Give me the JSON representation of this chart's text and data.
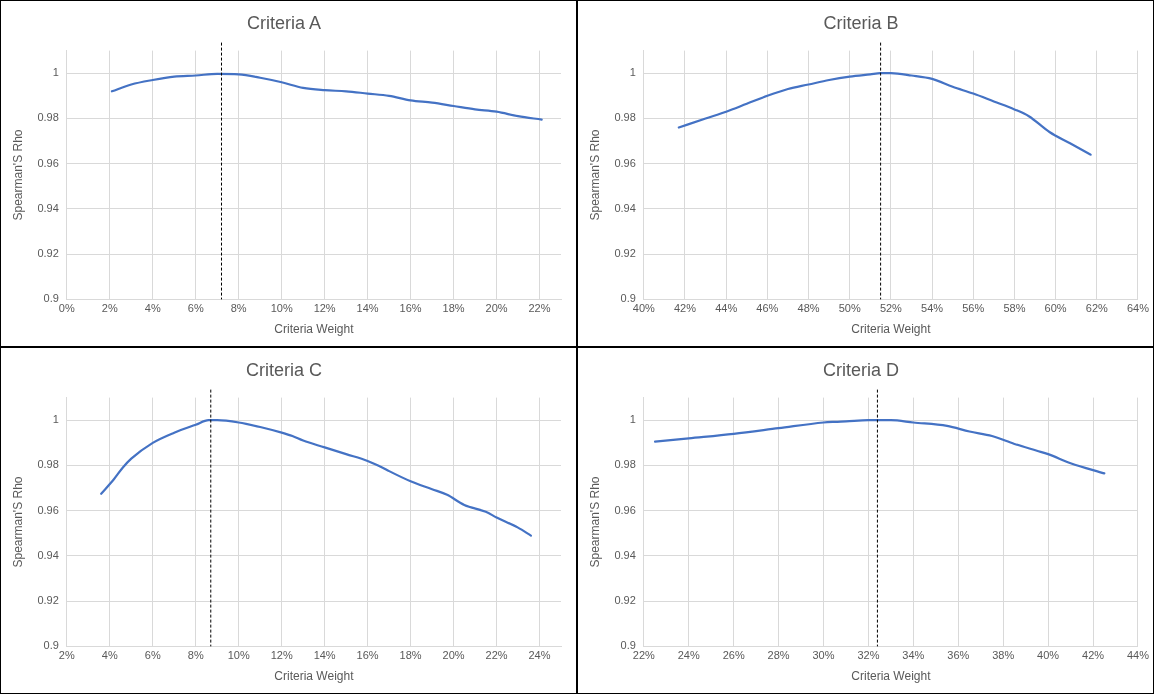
{
  "chart_data": [
    {
      "type": "line",
      "title": "Criteria A",
      "xlabel": "Criteria Weight",
      "ylabel": "Spearman'S Rho",
      "grid": true,
      "marker": "none",
      "line_style": "solid",
      "xlim": [
        0,
        23
      ],
      "xticks": [
        {
          "value": 0,
          "label": "0%"
        },
        {
          "value": 2,
          "label": "2%"
        },
        {
          "value": 4,
          "label": "4%"
        },
        {
          "value": 6,
          "label": "6%"
        },
        {
          "value": 8,
          "label": "8%"
        },
        {
          "value": 10,
          "label": "10%"
        },
        {
          "value": 12,
          "label": "12%"
        },
        {
          "value": 14,
          "label": "14%"
        },
        {
          "value": 16,
          "label": "16%"
        },
        {
          "value": 18,
          "label": "18%"
        },
        {
          "value": 20,
          "label": "20%"
        },
        {
          "value": 22,
          "label": "22%"
        }
      ],
      "ylim": [
        0.9,
        1.01
      ],
      "yticks": [
        0.9,
        0.92,
        0.94,
        0.96,
        0.98,
        1
      ],
      "ref_lines": [
        {
          "axis": "x",
          "value": 7.2,
          "color": "#000000",
          "line_style": "dashed"
        }
      ],
      "series": [
        {
          "color": "#4472c4",
          "x": [
            2.1,
            3,
            4,
            5,
            6,
            7,
            8,
            9,
            10,
            11,
            12,
            13,
            14,
            15,
            16,
            17,
            18,
            19,
            20,
            21,
            22.1
          ],
          "values": [
            0.992,
            0.995,
            0.997,
            0.9985,
            0.999,
            0.9997,
            0.9995,
            0.998,
            0.996,
            0.9935,
            0.9925,
            0.992,
            0.991,
            0.99,
            0.988,
            0.987,
            0.9855,
            0.984,
            0.983,
            0.981,
            0.9795
          ]
        }
      ]
    },
    {
      "type": "line",
      "title": "Criteria B",
      "xlabel": "Criteria Weight",
      "ylabel": "Spearman'S Rho",
      "grid": true,
      "marker": "none",
      "line_style": "solid",
      "xlim": [
        40,
        64
      ],
      "xticks": [
        {
          "value": 40,
          "label": "40%"
        },
        {
          "value": 42,
          "label": "42%"
        },
        {
          "value": 44,
          "label": "44%"
        },
        {
          "value": 46,
          "label": "46%"
        },
        {
          "value": 48,
          "label": "48%"
        },
        {
          "value": 50,
          "label": "50%"
        },
        {
          "value": 52,
          "label": "52%"
        },
        {
          "value": 54,
          "label": "54%"
        },
        {
          "value": 56,
          "label": "56%"
        },
        {
          "value": 58,
          "label": "58%"
        },
        {
          "value": 60,
          "label": "60%"
        },
        {
          "value": 62,
          "label": "62%"
        },
        {
          "value": 64,
          "label": "64%"
        }
      ],
      "ylim": [
        0.9,
        1.01
      ],
      "yticks": [
        0.9,
        0.92,
        0.94,
        0.96,
        0.98,
        1
      ],
      "ref_lines": [
        {
          "axis": "x",
          "value": 51.5,
          "color": "#000000",
          "line_style": "dashed"
        }
      ],
      "series": [
        {
          "color": "#4472c4",
          "x": [
            41.7,
            43,
            44,
            45,
            46,
            47,
            48,
            49,
            50,
            51,
            51.5,
            52,
            53,
            54,
            55,
            56,
            57,
            58,
            58.7,
            59.7,
            60.7,
            61.7
          ],
          "values": [
            0.976,
            0.98,
            0.983,
            0.9865,
            0.99,
            0.993,
            0.995,
            0.997,
            0.9985,
            0.9995,
            1,
            1,
            0.999,
            0.9975,
            0.994,
            0.991,
            0.9875,
            0.984,
            0.981,
            0.974,
            0.969,
            0.964
          ]
        }
      ]
    },
    {
      "type": "line",
      "title": "Criteria C",
      "xlabel": "Criteria Weight",
      "ylabel": "Spearman'S Rho",
      "grid": true,
      "marker": "none",
      "line_style": "solid",
      "xlim": [
        2,
        25
      ],
      "xticks": [
        {
          "value": 2,
          "label": "2%"
        },
        {
          "value": 4,
          "label": "4%"
        },
        {
          "value": 6,
          "label": "6%"
        },
        {
          "value": 8,
          "label": "8%"
        },
        {
          "value": 10,
          "label": "10%"
        },
        {
          "value": 12,
          "label": "12%"
        },
        {
          "value": 14,
          "label": "14%"
        },
        {
          "value": 16,
          "label": "16%"
        },
        {
          "value": 18,
          "label": "18%"
        },
        {
          "value": 20,
          "label": "20%"
        },
        {
          "value": 22,
          "label": "22%"
        },
        {
          "value": 24,
          "label": "24%"
        }
      ],
      "ylim": [
        0.9,
        1.01
      ],
      "yticks": [
        0.9,
        0.92,
        0.94,
        0.96,
        0.98,
        1
      ],
      "ref_lines": [
        {
          "axis": "x",
          "value": 8.7,
          "color": "#000000",
          "line_style": "dashed"
        }
      ],
      "series": [
        {
          "color": "#4472c4",
          "x": [
            3.6,
            4.2,
            4.6,
            5,
            6,
            7,
            8,
            8.6,
            9,
            10,
            11,
            12,
            12.5,
            13,
            14,
            15,
            16,
            16.7,
            17,
            18,
            19,
            19.7,
            20.5,
            21.5,
            22,
            23,
            23.6
          ],
          "values": [
            0.9675,
            0.974,
            0.979,
            0.983,
            0.99,
            0.9945,
            0.998,
            1,
            1,
            0.999,
            0.997,
            0.9945,
            0.993,
            0.991,
            0.988,
            0.985,
            0.982,
            0.979,
            0.9775,
            0.973,
            0.9695,
            0.967,
            0.9625,
            0.9595,
            0.957,
            0.9525,
            0.949
          ]
        }
      ]
    },
    {
      "type": "line",
      "title": "Criteria D",
      "xlabel": "Criteria Weight",
      "ylabel": "Spearman'S Rho",
      "grid": true,
      "marker": "none",
      "line_style": "solid",
      "xlim": [
        22,
        44
      ],
      "xticks": [
        {
          "value": 22,
          "label": "22%"
        },
        {
          "value": 24,
          "label": "24%"
        },
        {
          "value": 26,
          "label": "26%"
        },
        {
          "value": 28,
          "label": "28%"
        },
        {
          "value": 30,
          "label": "30%"
        },
        {
          "value": 32,
          "label": "32%"
        },
        {
          "value": 34,
          "label": "34%"
        },
        {
          "value": 36,
          "label": "36%"
        },
        {
          "value": 38,
          "label": "38%"
        },
        {
          "value": 40,
          "label": "40%"
        },
        {
          "value": 42,
          "label": "42%"
        },
        {
          "value": 44,
          "label": "44%"
        }
      ],
      "ylim": [
        0.9,
        1.01
      ],
      "yticks": [
        0.9,
        0.92,
        0.94,
        0.96,
        0.98,
        1
      ],
      "ref_lines": [
        {
          "axis": "x",
          "value": 32.4,
          "color": "#000000",
          "line_style": "dashed"
        }
      ],
      "series": [
        {
          "color": "#4472c4",
          "x": [
            22.5,
            24,
            26,
            28,
            30,
            30.5,
            31,
            32,
            33,
            34,
            35.5,
            36.5,
            37.5,
            38.5,
            39.5,
            40,
            41,
            42.5
          ],
          "values": [
            0.9905,
            0.992,
            0.994,
            0.9965,
            0.999,
            0.9993,
            0.9995,
            1,
            1,
            0.999,
            0.9975,
            0.995,
            0.993,
            0.9895,
            0.9865,
            0.985,
            0.981,
            0.9765
          ]
        }
      ]
    }
  ]
}
